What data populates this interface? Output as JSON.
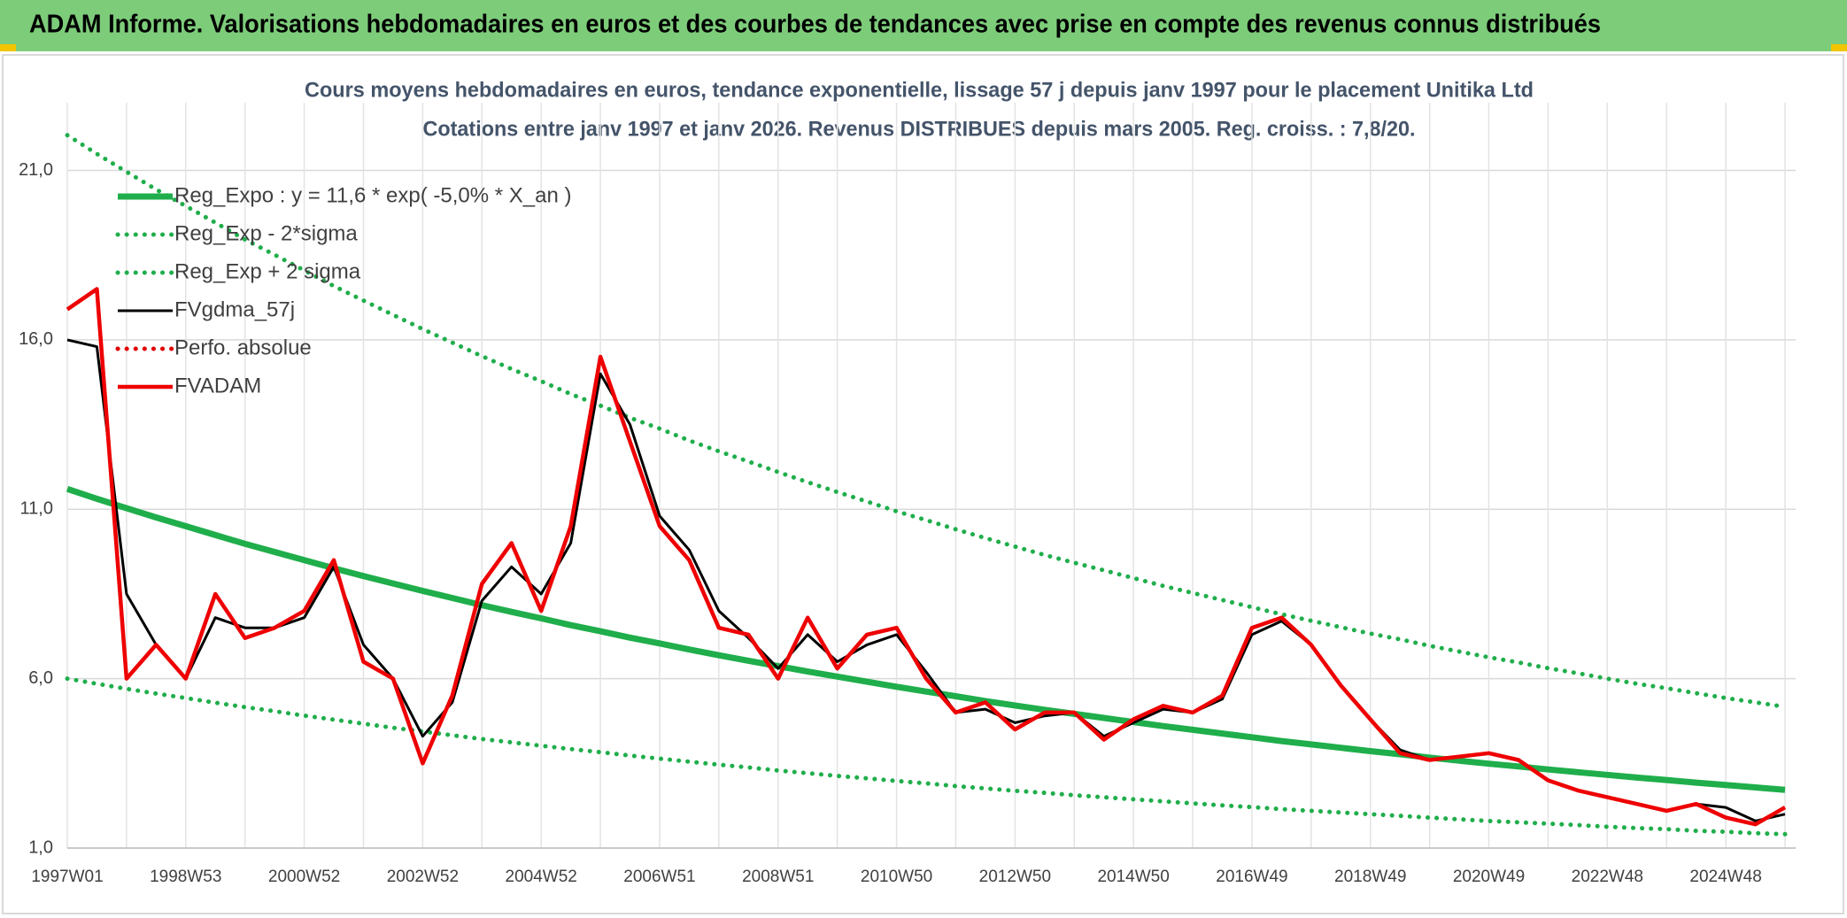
{
  "header": {
    "title": "ADAM Informe. Valorisations hebdomadaires en euros et des courbes de tendances avec prise en compte des revenus connus distribués"
  },
  "chart_data": {
    "type": "line",
    "title": "Cours moyens hebdomadaires en euros, tendance exponentielle, lissage 57 j depuis janv 1997 pour le placement Unitika Ltd",
    "subtitle": "Cotations entre janv 1997 et janv 2026. Revenus DISTRIBUES depuis mars 2005. Reg. croiss. : 7,8/20.",
    "categories": [
      "1997W01",
      null,
      null,
      null,
      "1998W53",
      null,
      null,
      null,
      "2000W52",
      null,
      null,
      null,
      "2002W52",
      null,
      null,
      null,
      "2004W52",
      null,
      null,
      null,
      "2006W51",
      null,
      null,
      null,
      "2008W51",
      null,
      null,
      null,
      "2010W50",
      null,
      null,
      null,
      "2012W50",
      null,
      null,
      null,
      "2014W50",
      null,
      null,
      null,
      "2016W49",
      null,
      null,
      null,
      "2018W49",
      null,
      null,
      null,
      "2020W49",
      null,
      null,
      null,
      "2022W48",
      null,
      null,
      null,
      "2024W48",
      null,
      null
    ],
    "ylim": [
      1,
      23
    ],
    "yticks": [
      {
        "value": 1,
        "label": "1,0"
      },
      {
        "value": 6,
        "label": "6,0"
      },
      {
        "value": 11,
        "label": "11,0"
      },
      {
        "value": 16,
        "label": "16,0"
      },
      {
        "value": 21,
        "label": "21,0"
      }
    ],
    "grid": true,
    "legend": "upper left",
    "series": [
      {
        "name": "Reg_Expo : y = 11,6 * exp( -5,0% *  X_an )",
        "color": "#1fae4b",
        "style": "solid",
        "values": [
          11.6,
          11.31,
          11.03,
          10.76,
          10.5,
          10.24,
          9.98,
          9.74,
          9.5,
          9.26,
          9.03,
          8.81,
          8.59,
          8.38,
          8.17,
          7.97,
          7.78,
          7.58,
          7.4,
          7.21,
          7.04,
          6.86,
          6.69,
          6.53,
          6.37,
          6.21,
          6.06,
          5.91,
          5.76,
          5.62,
          5.48,
          5.34,
          5.21,
          5.08,
          4.96,
          4.84,
          4.72,
          4.6,
          4.49,
          4.38,
          4.27,
          4.16,
          4.06,
          3.96,
          3.86,
          3.77,
          3.67,
          3.58,
          3.49,
          3.41,
          3.32,
          3.24,
          3.16,
          3.08,
          3.01,
          2.93,
          2.86,
          2.79,
          2.72
        ]
      },
      {
        "name": "Reg_Exp - 2*sigma",
        "color": "#1fae4b",
        "style": "dotted",
        "values": [
          6.0,
          5.85,
          5.7,
          5.56,
          5.43,
          5.29,
          5.16,
          5.04,
          4.91,
          4.79,
          4.67,
          4.55,
          4.44,
          4.33,
          4.22,
          4.12,
          4.02,
          3.92,
          3.83,
          3.73,
          3.64,
          3.55,
          3.46,
          3.38,
          3.29,
          3.21,
          3.13,
          3.06,
          2.98,
          2.91,
          2.83,
          2.76,
          2.69,
          2.63,
          2.56,
          2.5,
          2.44,
          2.38,
          2.32,
          2.26,
          2.21,
          2.15,
          2.1,
          2.05,
          2.0,
          1.95,
          1.9,
          1.85,
          1.8,
          1.76,
          1.72,
          1.68,
          1.63,
          1.59,
          1.56,
          1.51,
          1.48,
          1.44,
          1.41
        ]
      },
      {
        "name": "Reg_Exp + 2 sigma",
        "color": "#1fae4b",
        "style": "dotted",
        "values": [
          22.04,
          21.49,
          20.96,
          20.44,
          19.95,
          19.46,
          18.96,
          18.51,
          18.05,
          17.59,
          17.16,
          16.74,
          16.32,
          15.92,
          15.52,
          15.14,
          14.78,
          14.4,
          14.06,
          13.7,
          13.38,
          13.03,
          12.71,
          12.41,
          12.1,
          11.8,
          11.51,
          11.23,
          10.94,
          10.68,
          10.41,
          10.15,
          9.9,
          9.65,
          9.42,
          9.2,
          8.97,
          8.74,
          8.53,
          8.32,
          8.11,
          7.9,
          7.71,
          7.52,
          7.33,
          7.16,
          6.97,
          6.8,
          6.63,
          6.48,
          6.31,
          6.16,
          6.0,
          5.85,
          5.72,
          5.57,
          5.43,
          5.3,
          5.17
        ]
      },
      {
        "name": "FVgdma_57j",
        "color": "#000000",
        "style": "thin",
        "values": [
          16.0,
          15.8,
          8.5,
          7.0,
          6.0,
          7.8,
          7.5,
          7.5,
          7.8,
          9.3,
          7.0,
          6.0,
          4.3,
          5.3,
          8.3,
          9.3,
          8.5,
          10.0,
          15.0,
          13.5,
          10.8,
          9.8,
          8.0,
          7.2,
          6.3,
          7.3,
          6.5,
          7.0,
          7.3,
          6.2,
          5.0,
          5.1,
          4.7,
          4.9,
          5.0,
          4.3,
          4.7,
          5.1,
          5.0,
          5.4,
          7.3,
          7.7,
          7.0,
          5.8,
          4.8,
          3.9,
          3.6,
          3.7,
          3.8,
          3.6,
          3.0,
          2.7,
          2.5,
          2.3,
          2.1,
          2.3,
          2.2,
          1.8,
          2.0
        ]
      },
      {
        "name": "Perfo. absolue",
        "color": "#e00000",
        "style": "dotted",
        "values": [
          null,
          null,
          null,
          null,
          null,
          null,
          null,
          null,
          null,
          null,
          null,
          null,
          null,
          null,
          null,
          null,
          null,
          null,
          null,
          null,
          null,
          null,
          null,
          null,
          null,
          null,
          null,
          null,
          null,
          null,
          null,
          null,
          null,
          null,
          null,
          null,
          null,
          null,
          null,
          null,
          null,
          null,
          null,
          null,
          null,
          null,
          null,
          null,
          null,
          null,
          null,
          null,
          null,
          null,
          null,
          null,
          null,
          null,
          null
        ]
      },
      {
        "name": "FVADAM",
        "color": "#ee0000",
        "style": "solid",
        "values": [
          16.9,
          17.5,
          6.0,
          7.0,
          6.0,
          8.5,
          7.2,
          7.5,
          8.0,
          9.5,
          6.5,
          6.0,
          3.5,
          5.5,
          8.8,
          10.0,
          8.0,
          10.5,
          15.5,
          13.0,
          10.5,
          9.5,
          7.5,
          7.3,
          6.0,
          7.8,
          6.3,
          7.3,
          7.5,
          6.0,
          5.0,
          5.3,
          4.5,
          5.0,
          5.0,
          4.2,
          4.8,
          5.2,
          5.0,
          5.5,
          7.5,
          7.8,
          7.0,
          5.8,
          4.8,
          3.8,
          3.6,
          3.7,
          3.8,
          3.6,
          3.0,
          2.7,
          2.5,
          2.3,
          2.1,
          2.3,
          1.9,
          1.7,
          2.2
        ]
      }
    ]
  }
}
